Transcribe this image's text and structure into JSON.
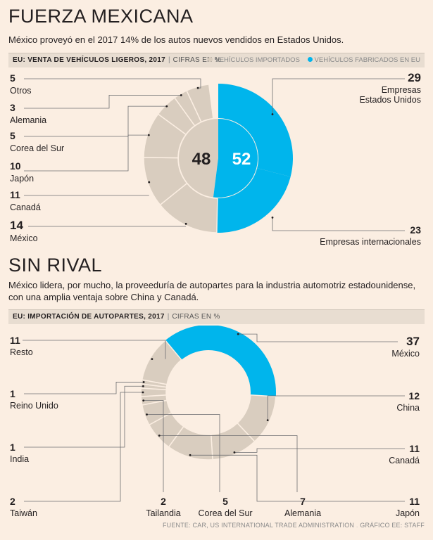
{
  "section1": {
    "title": "FUERZA MEXICANA",
    "subtitle": "México proveyó en el 2017 14% de los autos nuevos vendidos en Estados Unidos.",
    "bar_title": "EU: VENTA DE VEHÍCULOS LIGEROS, 2017",
    "bar_units": "CIFRAS EN %",
    "legend_imported": "VEHÍCULOS IMPORTADOS",
    "legend_us": "VEHÍCULOS FABRICADOS EN EU"
  },
  "section2": {
    "title": "SIN RIVAL",
    "subtitle": "México lidera, por mucho, la proveeduría de autopartes para la industria automotriz estadounidense, con una amplia ventaja sobre China y Canadá.",
    "bar_title": "EU: IMPORTACIÓN DE AUTOPARTES, 2017",
    "bar_units": "CIFRAS EN %"
  },
  "source": "FUENTE: CAR, US INTERNATIONAL TRADE ADMINISTRATION",
  "credit": "GRÁFICO EE: STAFF",
  "colors": {
    "imported": "#d9cdbf",
    "us_made": "#00b5ec",
    "background": "#fbeee2",
    "segment_border": "#fbeee2"
  },
  "chart_data": [
    {
      "type": "pie",
      "title": "EU: VENTA DE VEHÍCULOS LIGEROS, 2017",
      "units": "CIFRAS EN %",
      "inner": {
        "imported_label": "48",
        "imported_value": 48,
        "us_label": "52",
        "us_value": 52
      },
      "us_slices": [
        {
          "label": "Empresas Estados Unidos",
          "label_lines": [
            "Empresas",
            "Estados Unidos"
          ],
          "value": 29,
          "value_label": "29"
        },
        {
          "label": "Empresas internacionales",
          "label_lines": [
            "Empresas internacionales"
          ],
          "value": 23,
          "value_label": "23"
        }
      ],
      "imported_slices": [
        {
          "label": "México",
          "value": 14,
          "value_label": "14"
        },
        {
          "label": "Canadá",
          "value": 11,
          "value_label": "11"
        },
        {
          "label": "Japón",
          "value": 10,
          "value_label": "10"
        },
        {
          "label": "Corea del Sur",
          "value": 5,
          "value_label": "5"
        },
        {
          "label": "Alemania",
          "value": 3,
          "value_label": "3"
        },
        {
          "label": "Otros",
          "value": 5,
          "value_label": "5"
        }
      ]
    },
    {
      "type": "pie",
      "title": "EU: IMPORTACIÓN DE AUTOPARTES, 2017",
      "units": "CIFRAS EN %",
      "slices": [
        {
          "label": "México",
          "value": 37,
          "value_label": "37"
        },
        {
          "label": "China",
          "value": 12,
          "value_label": "12"
        },
        {
          "label": "Canadá",
          "value": 11,
          "value_label": "11"
        },
        {
          "label": "Japón",
          "value": 11,
          "value_label": "11"
        },
        {
          "label": "Alemania",
          "value": 7,
          "value_label": "7"
        },
        {
          "label": "Corea del Sur",
          "value": 5,
          "value_label": "5"
        },
        {
          "label": "Tailandia",
          "value": 2,
          "value_label": "2"
        },
        {
          "label": "Taiwán",
          "value": 2,
          "value_label": "2"
        },
        {
          "label": "India",
          "value": 1,
          "value_label": "1"
        },
        {
          "label": "Reino Unido",
          "value": 1,
          "value_label": "1"
        },
        {
          "label": "Resto",
          "value": 11,
          "value_label": "11"
        }
      ]
    }
  ]
}
